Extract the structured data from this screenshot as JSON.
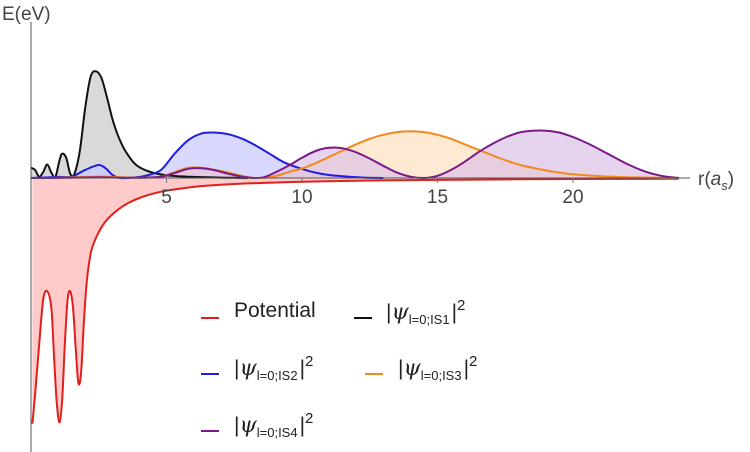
{
  "chart_data": {
    "type": "area",
    "title": "",
    "xlabel": "r(a_s)",
    "xlabel_parts": {
      "main": "r(",
      "var": "a",
      "sub": "s",
      "close": ")"
    },
    "ylabel": "E(eV)",
    "xlim": [
      0,
      24
    ],
    "ylim": [
      -9.3,
      4.5
    ],
    "x_ticks": [
      5,
      10,
      15,
      20
    ],
    "x_tick_labels": [
      "5",
      "10",
      "15",
      "20"
    ],
    "grid": false,
    "legend_position": "bottom-center",
    "series": [
      {
        "key": "potential",
        "label": "Potential",
        "color": "#e0201e",
        "fill": "#ffc7c7",
        "x": [
          0.05,
          0.15,
          0.3,
          0.45,
          0.6,
          0.75,
          0.85,
          0.95,
          1.05,
          1.15,
          1.25,
          1.35,
          1.45,
          1.55,
          1.65,
          1.75,
          1.85,
          1.95,
          2.05,
          2.15,
          2.25,
          2.5,
          2.8,
          3.2,
          3.6,
          4.0,
          4.5,
          5.0,
          6.0,
          7.0,
          8.0,
          10.0,
          12.0,
          15.0,
          18.0,
          21.0,
          23.9
        ],
        "y": [
          -9.1,
          -8.0,
          -6.2,
          -4.5,
          -4.2,
          -4.8,
          -6.6,
          -8.3,
          -9.05,
          -8.2,
          -6.1,
          -4.5,
          -4.2,
          -4.8,
          -6.3,
          -7.6,
          -7.2,
          -5.4,
          -3.9,
          -3.1,
          -2.6,
          -2.0,
          -1.55,
          -1.18,
          -0.92,
          -0.74,
          -0.58,
          -0.47,
          -0.33,
          -0.25,
          -0.2,
          -0.14,
          -0.1,
          -0.07,
          -0.05,
          -0.035,
          -0.03
        ]
      },
      {
        "key": "is1",
        "label": "|ψ_{l=0;IS1}|^2",
        "color": "#111111",
        "fill": "#c9c9c9",
        "x": [
          0.0,
          0.15,
          0.3,
          0.45,
          0.6,
          0.75,
          0.9,
          1.05,
          1.15,
          1.3,
          1.45,
          1.6,
          1.8,
          2.0,
          2.2,
          2.4,
          2.6,
          2.8,
          3.0,
          3.2,
          3.4,
          3.6,
          3.8,
          4.0,
          4.3,
          4.6,
          5.0,
          5.5,
          6.0,
          6.5,
          7.0,
          7.5,
          8.0
        ],
        "y": [
          0.38,
          0.3,
          0.05,
          0.22,
          0.5,
          0.2,
          0.04,
          0.65,
          0.9,
          0.75,
          0.15,
          0.15,
          1.0,
          2.6,
          3.75,
          3.95,
          3.7,
          3.0,
          2.2,
          1.6,
          1.15,
          0.82,
          0.56,
          0.4,
          0.26,
          0.17,
          0.1,
          0.06,
          0.04,
          0.025,
          0.015,
          0.006,
          0.0
        ]
      },
      {
        "key": "is2",
        "label": "|ψ_{l=0;IS2}|^2",
        "color": "#1d1de0",
        "fill": "#c9c9ff",
        "x": [
          0.0,
          0.5,
          1.0,
          1.5,
          2.0,
          2.5,
          2.8,
          3.0,
          3.3,
          3.8,
          4.3,
          4.8,
          5.3,
          5.8,
          6.3,
          6.8,
          7.3,
          7.8,
          8.3,
          8.8,
          9.3,
          9.8,
          10.3,
          10.8,
          11.3,
          11.8,
          12.3,
          13.0
        ],
        "y": [
          0.0,
          0.02,
          0.04,
          0.05,
          0.3,
          0.48,
          0.32,
          0.12,
          0.0,
          0.02,
          0.1,
          0.3,
          0.9,
          1.4,
          1.65,
          1.68,
          1.62,
          1.45,
          1.2,
          0.9,
          0.6,
          0.4,
          0.25,
          0.14,
          0.08,
          0.04,
          0.015,
          0.0
        ]
      },
      {
        "key": "is3",
        "label": "|ψ_{l=0;IS3}|^2",
        "color": "#f28a1a",
        "fill": "#fde0c0",
        "x": [
          0.0,
          1.0,
          2.0,
          2.8,
          3.5,
          4.2,
          4.8,
          5.3,
          5.8,
          6.3,
          6.8,
          7.3,
          7.8,
          8.3,
          8.8,
          9.2,
          9.6,
          10.0,
          10.5,
          11.0,
          11.5,
          12.0,
          12.5,
          13.0,
          13.5,
          14.0,
          14.5,
          15.0,
          15.5,
          16.0,
          16.5,
          17.0,
          17.5,
          18.0,
          18.5,
          19.0,
          19.5,
          20.0,
          21.0,
          22.0,
          23.0,
          23.9
        ],
        "y": [
          0.0,
          0.01,
          0.04,
          0.05,
          0.02,
          0.01,
          0.05,
          0.22,
          0.38,
          0.38,
          0.3,
          0.2,
          0.07,
          0.0,
          0.03,
          0.12,
          0.25,
          0.35,
          0.55,
          0.78,
          1.02,
          1.25,
          1.45,
          1.6,
          1.7,
          1.73,
          1.7,
          1.6,
          1.45,
          1.25,
          1.05,
          0.85,
          0.66,
          0.5,
          0.38,
          0.28,
          0.2,
          0.14,
          0.07,
          0.03,
          0.01,
          0.0
        ]
      },
      {
        "key": "is4",
        "label": "|ψ_{l=0;IS4}|^2",
        "color": "#7a1a8a",
        "fill": "#dcc0e6",
        "x": [
          0.0,
          1.0,
          2.0,
          2.5,
          3.0,
          4.0,
          4.8,
          5.3,
          5.8,
          6.3,
          6.8,
          7.3,
          7.8,
          8.2,
          8.6,
          9.0,
          9.5,
          10.0,
          10.5,
          11.0,
          11.5,
          12.0,
          12.5,
          13.0,
          13.5,
          14.0,
          14.5,
          15.0,
          15.5,
          16.0,
          16.5,
          17.0,
          17.5,
          18.0,
          18.5,
          19.0,
          19.5,
          20.0,
          20.5,
          21.0,
          21.5,
          22.0,
          22.5,
          23.0,
          23.5,
          23.9
        ],
        "y": [
          0.0,
          0.005,
          0.02,
          0.03,
          0.02,
          0.01,
          0.05,
          0.18,
          0.34,
          0.36,
          0.28,
          0.15,
          0.05,
          0.0,
          0.03,
          0.2,
          0.45,
          0.75,
          1.0,
          1.12,
          1.1,
          0.95,
          0.72,
          0.45,
          0.2,
          0.05,
          0.0,
          0.08,
          0.3,
          0.6,
          0.95,
          1.25,
          1.5,
          1.68,
          1.75,
          1.75,
          1.68,
          1.52,
          1.3,
          1.05,
          0.78,
          0.52,
          0.3,
          0.14,
          0.04,
          0.0
        ]
      }
    ]
  },
  "legend": {
    "potential_label": "Potential",
    "psi_symbol": "ψ",
    "subscript_prefix": "l=0;",
    "is1_tag": "IS1",
    "is2_tag": "IS2",
    "is3_tag": "IS3",
    "is4_tag": "IS4",
    "bar": "|",
    "power": "2"
  }
}
